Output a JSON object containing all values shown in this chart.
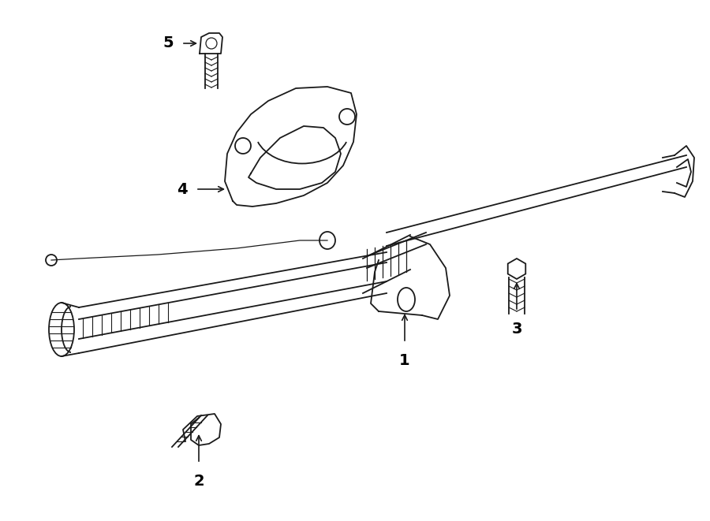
{
  "bg_color": "#ffffff",
  "line_color": "#1a1a1a",
  "label_color": "#000000",
  "figsize": [
    9.0,
    6.61
  ],
  "dpi": 100
}
